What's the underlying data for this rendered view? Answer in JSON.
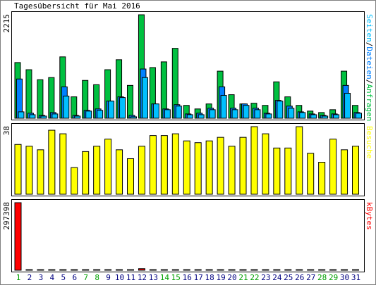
{
  "chart_data": {
    "type": "bar",
    "title": "Tagesübersicht für Mai 2016",
    "categories": [
      "1",
      "2",
      "3",
      "4",
      "5",
      "6",
      "7",
      "8",
      "9",
      "10",
      "11",
      "12",
      "13",
      "14",
      "15",
      "16",
      "17",
      "18",
      "19",
      "20",
      "21",
      "22",
      "23",
      "24",
      "25",
      "26",
      "27",
      "28",
      "29",
      "30",
      "31"
    ],
    "category_colors": [
      "#00a000",
      "#000080",
      "#000080",
      "#000080",
      "#000080",
      "#000080",
      "#00a000",
      "#00a000",
      "#000080",
      "#000080",
      "#000080",
      "#000080",
      "#000080",
      "#00a000",
      "#00a000",
      "#000080",
      "#000080",
      "#000080",
      "#000080",
      "#000080",
      "#00a000",
      "#00a000",
      "#000080",
      "#000080",
      "#000080",
      "#000080",
      "#000080",
      "#00a000",
      "#00a000",
      "#000080",
      "#000080"
    ],
    "separator": "/",
    "panels": [
      {
        "ylim": [
          0,
          2215
        ],
        "yticks": [
          2215
        ],
        "series": [
          {
            "name": "Seiten",
            "color": "#00c0ff",
            "values": [
              137,
              76,
              46,
              92,
              474,
              46,
              153,
              168,
              367,
              443,
              31,
              871,
              306,
              183,
              260,
              76,
              76,
              183,
              489,
              183,
              275,
              183,
              92,
              367,
              214,
              122,
              76,
              46,
              76,
              535,
              107
            ]
          },
          {
            "name": "Dateien",
            "color": "#0080ff",
            "values": [
              840,
              107,
              61,
              122,
              672,
              61,
              168,
              199,
              367,
              458,
              61,
              1054,
              306,
              199,
              290,
              92,
              107,
              214,
              672,
              214,
              306,
              214,
              107,
              382,
              260,
              137,
              92,
              61,
              92,
              703,
              122
            ]
          },
          {
            "name": "Anfragen",
            "color": "#00c040",
            "values": [
              1192,
              1039,
              825,
              871,
              1314,
              458,
              810,
              718,
              1039,
              1253,
              703,
              2215,
              1085,
              1207,
              1497,
              275,
              199,
              306,
              1008,
              504,
              306,
              321,
              275,
              779,
              458,
              275,
              153,
              122,
              183,
              1008,
              275
            ]
          }
        ]
      },
      {
        "ylim": [
          0,
          38
        ],
        "yticks": [
          38
        ],
        "series": [
          {
            "name": "Besuche",
            "color": "#ffff00",
            "values": [
              28,
              27,
              25,
              36,
              34,
              15,
              24,
              27,
              31,
              25,
              20,
              27,
              33,
              33,
              34,
              30,
              29,
              30,
              32,
              27,
              32,
              38,
              34,
              26,
              26,
              38,
              23,
              18,
              31,
              25,
              27
            ]
          }
        ]
      },
      {
        "ylim": [
          0,
          297398
        ],
        "yticks": [
          297398
        ],
        "series": [
          {
            "name": "kBytes",
            "color": "#ff0000",
            "values": [
              297398,
              2500,
              2500,
              2500,
              2500,
              2500,
              2500,
              2500,
              2500,
              2500,
              2500,
              7000,
              2500,
              2500,
              2500,
              2500,
              2500,
              2500,
              2500,
              2500,
              2500,
              2500,
              2500,
              2500,
              2500,
              2500,
              2500,
              2500,
              2500,
              2500,
              2500
            ]
          }
        ]
      }
    ]
  }
}
